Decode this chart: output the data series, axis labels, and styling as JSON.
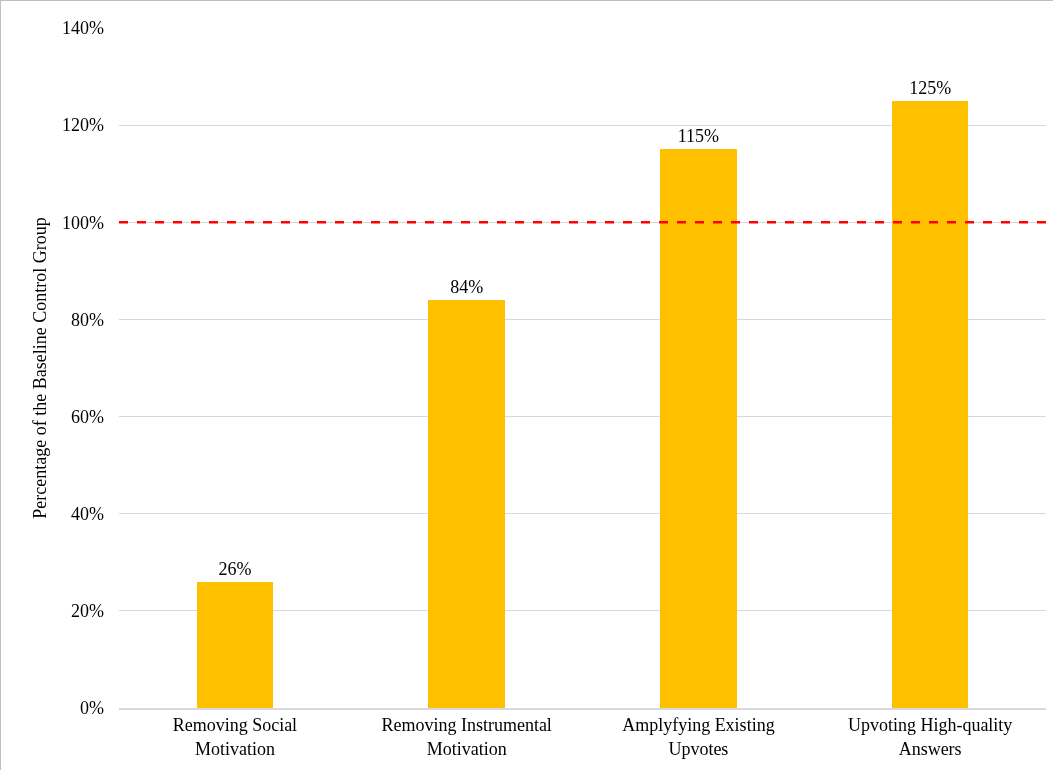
{
  "chart_data": {
    "type": "bar",
    "ylabel": "Percentage of the Baseline Control Group",
    "categories": [
      "Removing Social Motivation",
      "Removing Instrumental Motivation",
      "Amplyfying Existing Upvotes",
      "Upvoting High-quality Answers"
    ],
    "values": [
      26,
      84,
      115,
      125
    ],
    "color": "#ffc000",
    "value_labels": [
      "26%",
      "84%",
      "115%",
      "125%"
    ],
    "ylim": [
      0,
      140
    ],
    "yticks": [
      {
        "value": 0,
        "label": "0%"
      },
      {
        "value": 20,
        "label": "20%"
      },
      {
        "value": 40,
        "label": "40%"
      },
      {
        "value": 60,
        "label": "60%"
      },
      {
        "value": 80,
        "label": "80%"
      },
      {
        "value": 100,
        "label": "100%"
      },
      {
        "value": 120,
        "label": "120%"
      },
      {
        "value": 140,
        "label": "140%"
      }
    ],
    "grid": "y",
    "ref_lines": [
      {
        "axis": "y",
        "value": 100,
        "color": "#ff0000",
        "line_style": "dashed"
      }
    ]
  }
}
